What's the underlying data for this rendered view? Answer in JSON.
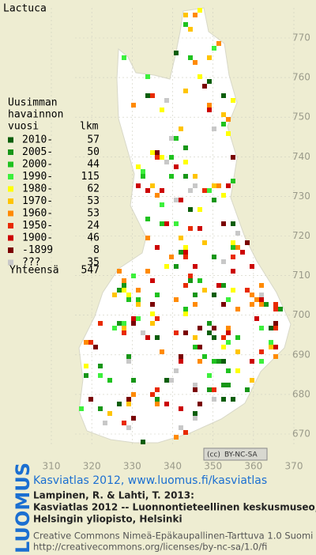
{
  "title": "Lactuca",
  "legend": {
    "header": [
      "Uusimman",
      "havainnon",
      "vuosi"
    ],
    "count_header": "lkm",
    "rows": [
      {
        "label": "2010-",
        "count": 57,
        "color": "#0b5e0b"
      },
      {
        "label": "2005-",
        "count": 50,
        "color": "#179617"
      },
      {
        "label": "2000-",
        "count": 44,
        "color": "#1fc21f"
      },
      {
        "label": "1990-",
        "count": 115,
        "color": "#3cf03c"
      },
      {
        "label": "1980-",
        "count": 62,
        "color": "#ffff00"
      },
      {
        "label": "1970-",
        "count": 53,
        "color": "#ffc400"
      },
      {
        "label": "1960-",
        "count": 53,
        "color": "#ff8a00"
      },
      {
        "label": "1950-",
        "count": 24,
        "color": "#e82a00"
      },
      {
        "label": "1900-",
        "count": 46,
        "color": "#cc0000"
      },
      {
        "label": "-1899",
        "count": 8,
        "color": "#7a0000"
      },
      {
        "label": "???",
        "count": 35,
        "color": "#c8c8c8"
      }
    ],
    "total_label": "Yhteensä",
    "total": 547
  },
  "grid": {
    "xticks": [
      310,
      320,
      330,
      340,
      350,
      360,
      370
    ],
    "yticks": [
      670,
      680,
      690,
      700,
      710,
      720,
      730,
      740,
      750,
      760,
      770
    ]
  },
  "license_badge": {
    "cc": "(cc)",
    "text": "BY-NC-SA"
  },
  "brand": "LUOMUS",
  "headline": "Kasviatlas 2012, www.luomus.fi/kasviatlas",
  "citation": [
    "Lampinen, R. & Lahti, T. 2013:",
    "Kasviatlas 2012 -- Luonnontieteellinen keskusmuseo,",
    "Helsingin yliopisto, Helsinki"
  ],
  "license": [
    "Creative Commons Nimeä-Epäkaupallinen-Tarttuva 1.0 Suomi",
    "http://creativecommons.org/licenses/by-nc-sa/1.0/fi"
  ]
}
